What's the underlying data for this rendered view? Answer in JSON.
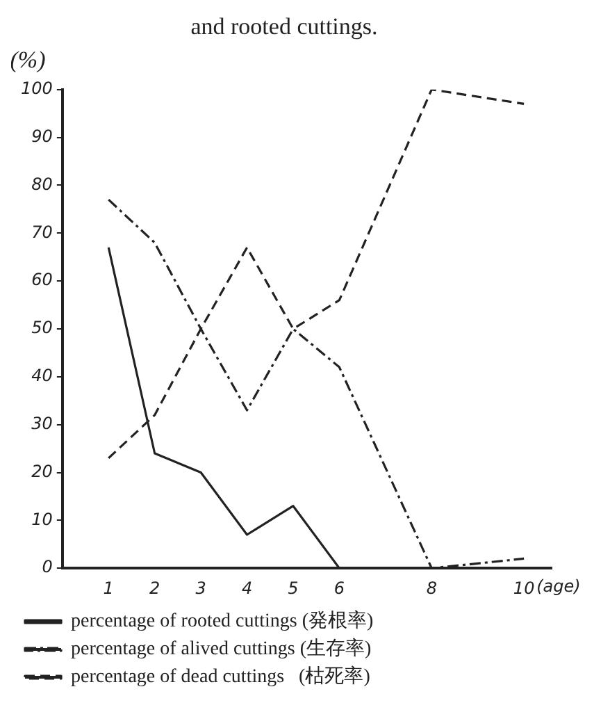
{
  "chart_data": {
    "type": "line",
    "title": "and rooted cuttings.",
    "ylabel": "(%)",
    "xlabel": "(age)",
    "xlim": [
      0,
      10.6
    ],
    "xticks": [
      1,
      2,
      3,
      4,
      5,
      6,
      8,
      10
    ],
    "ylim": [
      0,
      100
    ],
    "yticks": [
      0,
      10,
      20,
      30,
      40,
      50,
      60,
      70,
      80,
      90,
      100
    ],
    "grid": false,
    "legend": "bottom",
    "marker": "none",
    "series": [
      {
        "name": "percentage of rooted cuttings (発根率)",
        "color": "#222222",
        "line_style": "solid",
        "x": [
          1,
          2,
          3,
          4,
          5,
          6
        ],
        "values": [
          67,
          24,
          20,
          7,
          13,
          0
        ]
      },
      {
        "name": "percentage of alived cuttings (生存率)",
        "color": "#222222",
        "line_style": "dashdot",
        "x": [
          1,
          2,
          3,
          4,
          5,
          6,
          8,
          10
        ],
        "values": [
          77,
          68,
          50,
          33,
          50,
          42,
          0,
          2
        ]
      },
      {
        "name": "percentage of dead cuttings   (枯死率)",
        "color": "#222222",
        "line_style": "dashed",
        "x": [
          1,
          2,
          3,
          4,
          5,
          6,
          8,
          10
        ],
        "values": [
          23,
          32,
          50,
          67,
          50,
          56,
          100,
          97
        ]
      }
    ]
  }
}
